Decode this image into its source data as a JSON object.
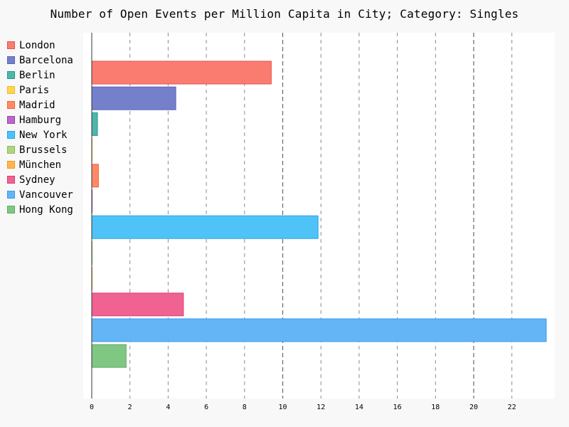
{
  "chart_data": {
    "type": "bar",
    "orientation": "horizontal",
    "title": "Number of Open Events per Million Capita in City; Category: Singles",
    "xlabel": "",
    "ylabel": "",
    "xlim": [
      0,
      24
    ],
    "x_ticks": [
      0,
      2,
      4,
      6,
      8,
      10,
      12,
      14,
      16,
      18,
      20,
      22
    ],
    "major_grid": [
      10,
      20
    ],
    "grid": true,
    "legend_position": "left",
    "categories": [
      "London",
      "Barcelona",
      "Berlin",
      "Paris",
      "Madrid",
      "Hamburg",
      "New York",
      "Brussels",
      "München",
      "Sydney",
      "Vancouver",
      "Hong Kong"
    ],
    "values": [
      9.4,
      4.4,
      0.3,
      0.0,
      0.35,
      0.0,
      11.85,
      0.0,
      0.0,
      4.8,
      23.8,
      1.8
    ],
    "colors": [
      "#fa7c71",
      "#7580cc",
      "#4db6ac",
      "#ffd54f",
      "#ff8a65",
      "#ba68c8",
      "#4fc3f7",
      "#aed581",
      "#ffb74d",
      "#f06292",
      "#64b5f6",
      "#81c784"
    ],
    "border_colors": [
      "#e0574b",
      "#5b66b5",
      "#2a998e",
      "#f0b92c",
      "#f0663c",
      "#9b45ab",
      "#29a5e5",
      "#8cbf5a",
      "#f29a26",
      "#dc3f76",
      "#3c9ce8",
      "#5fab63"
    ]
  }
}
